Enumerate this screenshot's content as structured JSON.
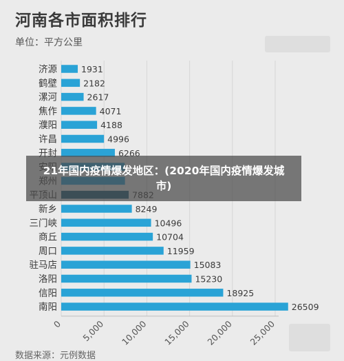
{
  "header": {
    "title": "河南各市面积排行",
    "unit": "单位：平方公里",
    "source": "数据来源：元例数据"
  },
  "overlay": {
    "caption": "21年国内疫情爆发地区：(2020年国内疫情爆发城市)"
  },
  "colors": {
    "bar": "#2aa3d6",
    "bar_dimmed": "#1d5e79",
    "text": "#3a3a3a",
    "grid": "#d6d6d6"
  },
  "chart_data": {
    "type": "bar",
    "orientation": "horizontal",
    "title": "河南各市面积排行",
    "unit": "单位：平方公里",
    "categories": [
      "济源",
      "鹤壁",
      "漯河",
      "焦作",
      "濮阳",
      "许昌",
      "开封",
      "安阳",
      "郑州",
      "平顶山",
      "新乡",
      "三门峡",
      "商丘",
      "周口",
      "驻马店",
      "洛阳",
      "信阳",
      "南阳"
    ],
    "values": [
      1931,
      2182,
      2617,
      4071,
      4188,
      4996,
      6266,
      7413,
      7446,
      7882,
      8249,
      10496,
      10704,
      11959,
      15083,
      15230,
      18925,
      26509
    ],
    "value_labels": [
      "1931",
      "2182",
      "2617",
      "4071",
      "4188",
      "4996",
      "6266",
      "",
      "",
      "7882",
      "8249",
      "10496",
      "10704",
      "11959",
      "15083",
      "15230",
      "18925",
      "26509"
    ],
    "xlim": [
      0,
      25000
    ],
    "xticks": [
      0,
      5000,
      10000,
      15000,
      20000,
      25000
    ],
    "xtick_labels": [
      "0",
      "5,000",
      "10,000",
      "15,000",
      "20,000",
      "25,000"
    ],
    "grid": true
  }
}
